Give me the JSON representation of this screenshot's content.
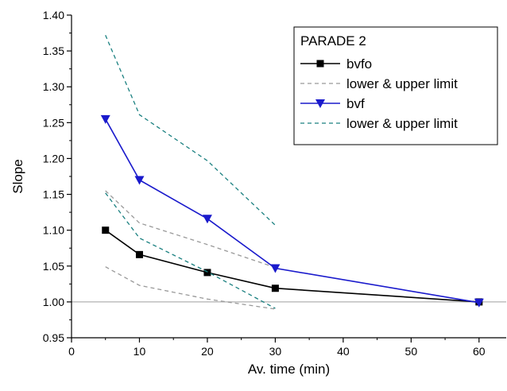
{
  "chart_data": {
    "type": "line",
    "xlabel": "Av. time (min)",
    "ylabel": "Slope",
    "xlim": [
      0,
      64
    ],
    "ylim": [
      0.95,
      1.4
    ],
    "xticks": [
      0,
      10,
      20,
      30,
      40,
      50,
      60
    ],
    "yticks": [
      0.95,
      1.0,
      1.05,
      1.1,
      1.15,
      1.2,
      1.25,
      1.3,
      1.35,
      1.4
    ],
    "reference_line": 1.0,
    "grid": false,
    "legend": {
      "title": "PARADE 2",
      "position": "top-right"
    },
    "series": [
      {
        "name": "bvfo",
        "color": "#000000",
        "marker": "square",
        "style": "solid",
        "x": [
          5,
          10,
          20,
          30,
          60
        ],
        "y": [
          1.1,
          1.066,
          1.041,
          1.019,
          1.0
        ]
      },
      {
        "name": "lower & upper limit",
        "color": "#999999",
        "marker": "none",
        "style": "dashed",
        "lines": [
          {
            "x": [
              5,
              10,
              20,
              30
            ],
            "y": [
              1.155,
              1.11,
              1.08,
              1.048
            ]
          },
          {
            "x": [
              5,
              10,
              20,
              30
            ],
            "y": [
              1.049,
              1.023,
              1.004,
              0.99
            ]
          }
        ]
      },
      {
        "name": "bvf",
        "color": "#1a1acc",
        "marker": "triangle-down",
        "style": "solid",
        "x": [
          5,
          10,
          20,
          30,
          60
        ],
        "y": [
          1.255,
          1.17,
          1.116,
          1.047,
          0.999
        ]
      },
      {
        "name": "lower & upper limit",
        "color": "#1a8080",
        "marker": "none",
        "style": "dashed",
        "lines": [
          {
            "x": [
              5,
              10,
              20,
              30
            ],
            "y": [
              1.372,
              1.261,
              1.197,
              1.107
            ]
          },
          {
            "x": [
              5,
              10,
              20,
              30
            ],
            "y": [
              1.152,
              1.089,
              1.042,
              0.991
            ]
          }
        ]
      }
    ]
  }
}
